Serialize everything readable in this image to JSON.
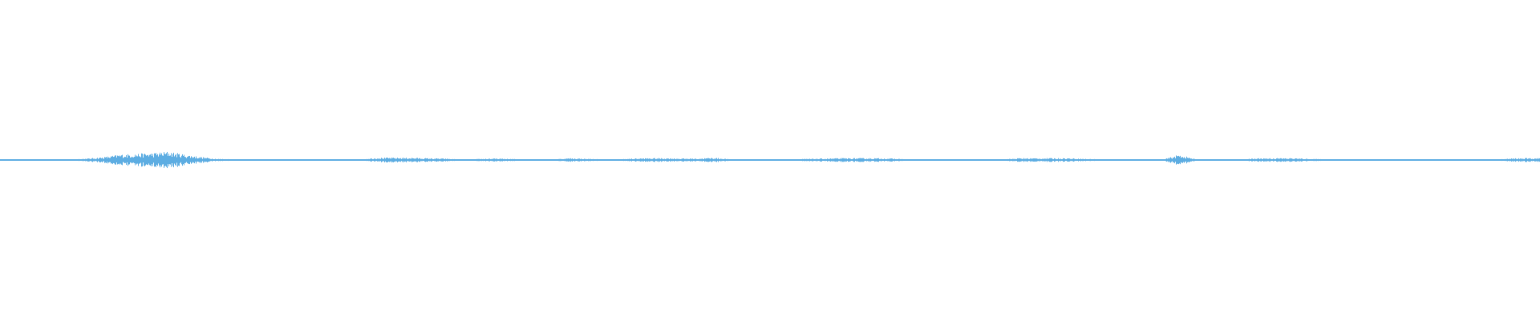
{
  "chart_data": {
    "type": "area",
    "description_of_marks": "",
    "title": "",
    "xlabel": "",
    "ylabel": "",
    "ylim": [
      -1,
      1
    ],
    "grid": false,
    "color": "#5dade2",
    "background": "#ffffff",
    "bins": 96,
    "peak_amplitude": [
      0.005,
      0.005,
      0.005,
      0.005,
      0.005,
      0.01,
      0.02,
      0.035,
      0.04,
      0.045,
      0.055,
      0.035,
      0.02,
      0.008,
      0.005,
      0.005,
      0.005,
      0.005,
      0.005,
      0.005,
      0.005,
      0.005,
      0.005,
      0.015,
      0.015,
      0.015,
      0.012,
      0.01,
      0.005,
      0.005,
      0.01,
      0.008,
      0.005,
      0.005,
      0.005,
      0.012,
      0.008,
      0.005,
      0.005,
      0.01,
      0.012,
      0.012,
      0.01,
      0.01,
      0.015,
      0.005,
      0.004,
      0.004,
      0.005,
      0.005,
      0.008,
      0.01,
      0.012,
      0.012,
      0.012,
      0.01,
      0.005,
      0.004,
      0.004,
      0.005,
      0.004,
      0.004,
      0.004,
      0.012,
      0.012,
      0.012,
      0.012,
      0.008,
      0.005,
      0.005,
      0.005,
      0.004,
      0.004,
      0.035,
      0.005,
      0.005,
      0.005,
      0.005,
      0.012,
      0.012,
      0.012,
      0.008,
      0.005,
      0.005,
      0.004,
      0.004,
      0.005,
      0.005,
      0.005,
      0.005,
      0.005,
      0.005,
      0.005,
      0.005,
      0.012,
      0.012
    ]
  }
}
